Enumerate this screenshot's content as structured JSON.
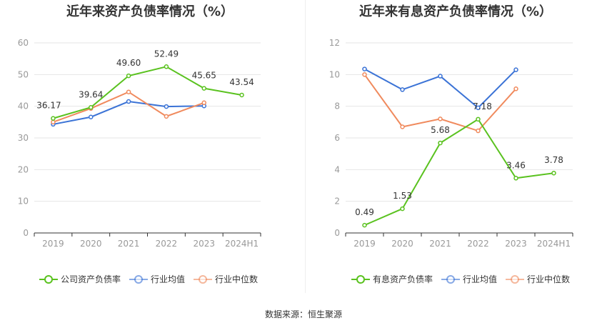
{
  "charts": {
    "left_title": "近年来资产负债率情况（%）",
    "right_title": "近年来有息资产负债率情况（%）"
  },
  "source_text": "数据来源：恒生聚源",
  "colors": {
    "main": "#5ac21f",
    "avg": "#3b73d6",
    "median": "#f08a5d",
    "grid": "#e6e6e6",
    "axis": "#999999"
  },
  "chart_data": [
    {
      "type": "line",
      "title": "近年来资产负债率情况（%）",
      "categories": [
        "2019",
        "2020",
        "2021",
        "2022",
        "2023",
        "2024H1"
      ],
      "ylim": [
        0,
        60
      ],
      "yticks": [
        0,
        10,
        20,
        30,
        40,
        50,
        60
      ],
      "grid": true,
      "legend_position": "bottom",
      "series": [
        {
          "name": "公司资产负债率",
          "color": "#5ac21f",
          "values": [
            36.17,
            39.64,
            49.6,
            52.49,
            45.65,
            43.54
          ],
          "labels": [
            "36.17",
            "39.64",
            "49.60",
            "52.49",
            "45.65",
            "43.54"
          ]
        },
        {
          "name": "行业均值",
          "color": "#3b73d6",
          "values": [
            34.3,
            36.6,
            41.5,
            39.9,
            40.1,
            null
          ]
        },
        {
          "name": "行业中位数",
          "color": "#f08a5d",
          "values": [
            35.0,
            39.3,
            44.5,
            36.8,
            41.1,
            null
          ]
        }
      ]
    },
    {
      "type": "line",
      "title": "近年来有息资产负债率情况（%）",
      "categories": [
        "2019",
        "2020",
        "2021",
        "2022",
        "2023",
        "2024H1"
      ],
      "ylim": [
        0,
        12
      ],
      "yticks": [
        0,
        2,
        4,
        6,
        8,
        10,
        12
      ],
      "grid": true,
      "legend_position": "bottom",
      "series": [
        {
          "name": "有息资产负债率",
          "color": "#5ac21f",
          "values": [
            0.49,
            1.53,
            5.68,
            7.18,
            3.46,
            3.78
          ],
          "labels": [
            "0.49",
            "1.53",
            "5.68",
            "7.18",
            "3.46",
            "3.78"
          ]
        },
        {
          "name": "行业均值",
          "color": "#3b73d6",
          "values": [
            10.35,
            9.05,
            9.9,
            7.9,
            10.3,
            null
          ]
        },
        {
          "name": "行业中位数",
          "color": "#f08a5d",
          "values": [
            10.0,
            6.7,
            7.2,
            6.45,
            9.1,
            null
          ]
        }
      ]
    }
  ]
}
